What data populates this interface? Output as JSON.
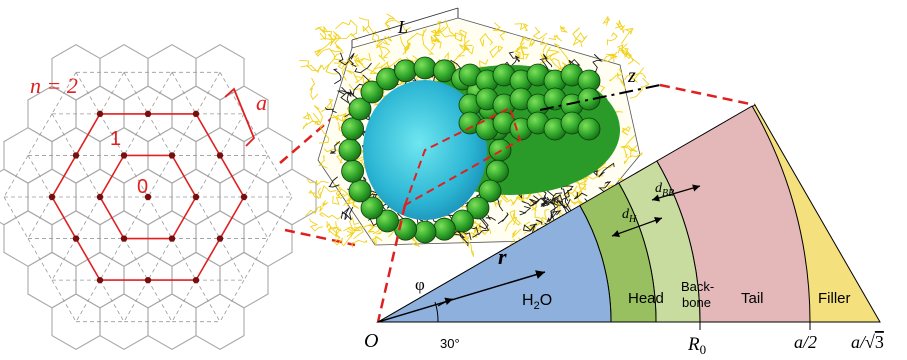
{
  "lattice": {
    "n_label": "n = 2",
    "shell_1_label": "1",
    "shell_0_label": "0",
    "spacing_label": "a"
  },
  "cylinder": {
    "length_label": "L",
    "axis_label": "z"
  },
  "wedge": {
    "r_label": "r",
    "phi_label": "φ",
    "angle_label": "30°",
    "origin_label": "O",
    "dh_label": "d",
    "dh_sub": "H",
    "dbb_label": "d",
    "dbb_sub": "BB",
    "regions": {
      "water": "H",
      "water_sub": "2",
      "water_tail": "O",
      "head": "Head",
      "backbone_1": "Back-",
      "backbone_2": "bone",
      "tail": "Tail",
      "filler": "Filler"
    },
    "axis_ticks": {
      "r0": "R",
      "r0_sub": "0",
      "half_a": "a/2",
      "a_over_root3_a": "a/",
      "a_over_root3_num": "3"
    },
    "colors": {
      "water": "#8eb0dc",
      "head": "#98c060",
      "backbone": "#c8dca0",
      "tail": "#e4b8b8",
      "filler": "#f4e07c",
      "dashed_red": "#e02020"
    }
  }
}
